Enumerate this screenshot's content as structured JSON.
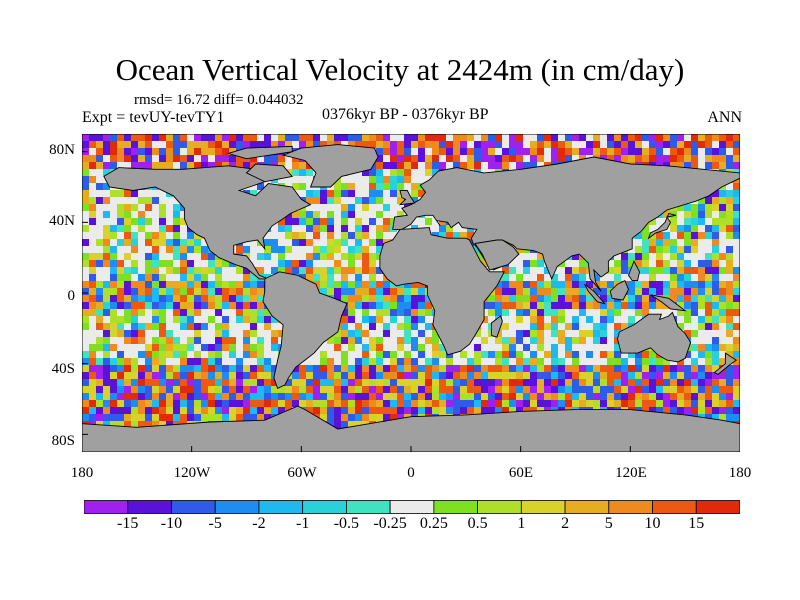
{
  "title": "Ocean Vertical Velocity at 2424m (in cm/day)",
  "stats": "rmsd= 16.72 diff= 0.044032",
  "experiment": "Expt = tevUY-tevTY1",
  "period": "0376kyr BP - 0376kyr BP",
  "season": "ANN",
  "lat_labels": [
    "80N",
    "40N",
    "0",
    "40S",
    "80S"
  ],
  "lon_labels": [
    "180",
    "120W",
    "60W",
    "0",
    "60E",
    "120E",
    "180"
  ],
  "colorbar": {
    "labels": [
      "-15",
      "-10",
      "-5",
      "-2",
      "-1",
      "-0.5",
      "-0.25",
      "0.25",
      "0.5",
      "1",
      "2",
      "5",
      "10",
      "15"
    ],
    "colors": [
      "#a020f0",
      "#5a12d8",
      "#2f5be8",
      "#1e8cf0",
      "#1fb8f0",
      "#28d2d8",
      "#40e2c0",
      "#ebebeb",
      "#7ee020",
      "#aee02a",
      "#d8d22a",
      "#e6ac22",
      "#ee8a1e",
      "#ec5a12",
      "#e02a0a"
    ]
  },
  "legend_land_color": "#a0a0a0",
  "legend_neutral_color": "#ebebeb"
}
